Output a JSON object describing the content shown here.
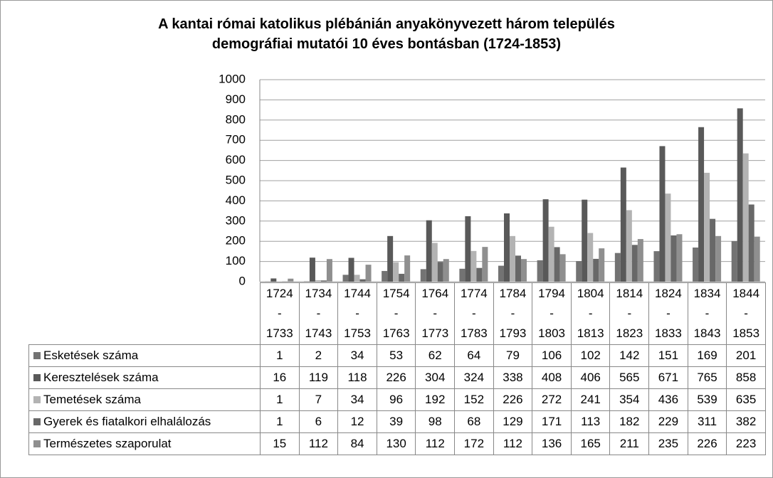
{
  "chart_data": {
    "type": "bar",
    "title": "A kantai római katolikus plébánián anyakönyvezett három település demográfiai mutatói 10 éves bontásban (1724-1853)",
    "categories": [
      "1724\n-\n1733",
      "1734\n-\n1743",
      "1744\n-\n1753",
      "1754\n-\n1763",
      "1764\n-\n1773",
      "1774\n-\n1783",
      "1784\n-\n1793",
      "1794\n-\n1803",
      "1804\n-\n1813",
      "1814\n-\n1823",
      "1824\n-\n1833",
      "1834\n-\n1843",
      "1844\n-\n1853"
    ],
    "series": [
      {
        "name": "Esketések száma",
        "color": "#737373",
        "values": [
          1,
          2,
          34,
          53,
          62,
          64,
          79,
          106,
          102,
          142,
          151,
          169,
          201
        ]
      },
      {
        "name": "Keresztelések száma",
        "color": "#595959",
        "values": [
          16,
          119,
          118,
          226,
          304,
          324,
          338,
          408,
          406,
          565,
          671,
          765,
          858
        ]
      },
      {
        "name": "Temetések száma",
        "color": "#b3b3b3",
        "values": [
          1,
          7,
          34,
          96,
          192,
          152,
          226,
          272,
          241,
          354,
          436,
          539,
          635
        ]
      },
      {
        "name": "Gyerek és fiatalkori elhalálozás",
        "color": "#686868",
        "values": [
          1,
          6,
          12,
          39,
          98,
          68,
          129,
          171,
          113,
          182,
          229,
          311,
          382
        ]
      },
      {
        "name": "Természetes szaporulat",
        "color": "#8f8f8f",
        "values": [
          15,
          112,
          84,
          130,
          112,
          172,
          112,
          136,
          165,
          211,
          235,
          226,
          223
        ]
      }
    ],
    "ylim": [
      0,
      1000
    ],
    "yticks": [
      0,
      100,
      200,
      300,
      400,
      500,
      600,
      700,
      800,
      900,
      1000
    ],
    "grid": true
  }
}
